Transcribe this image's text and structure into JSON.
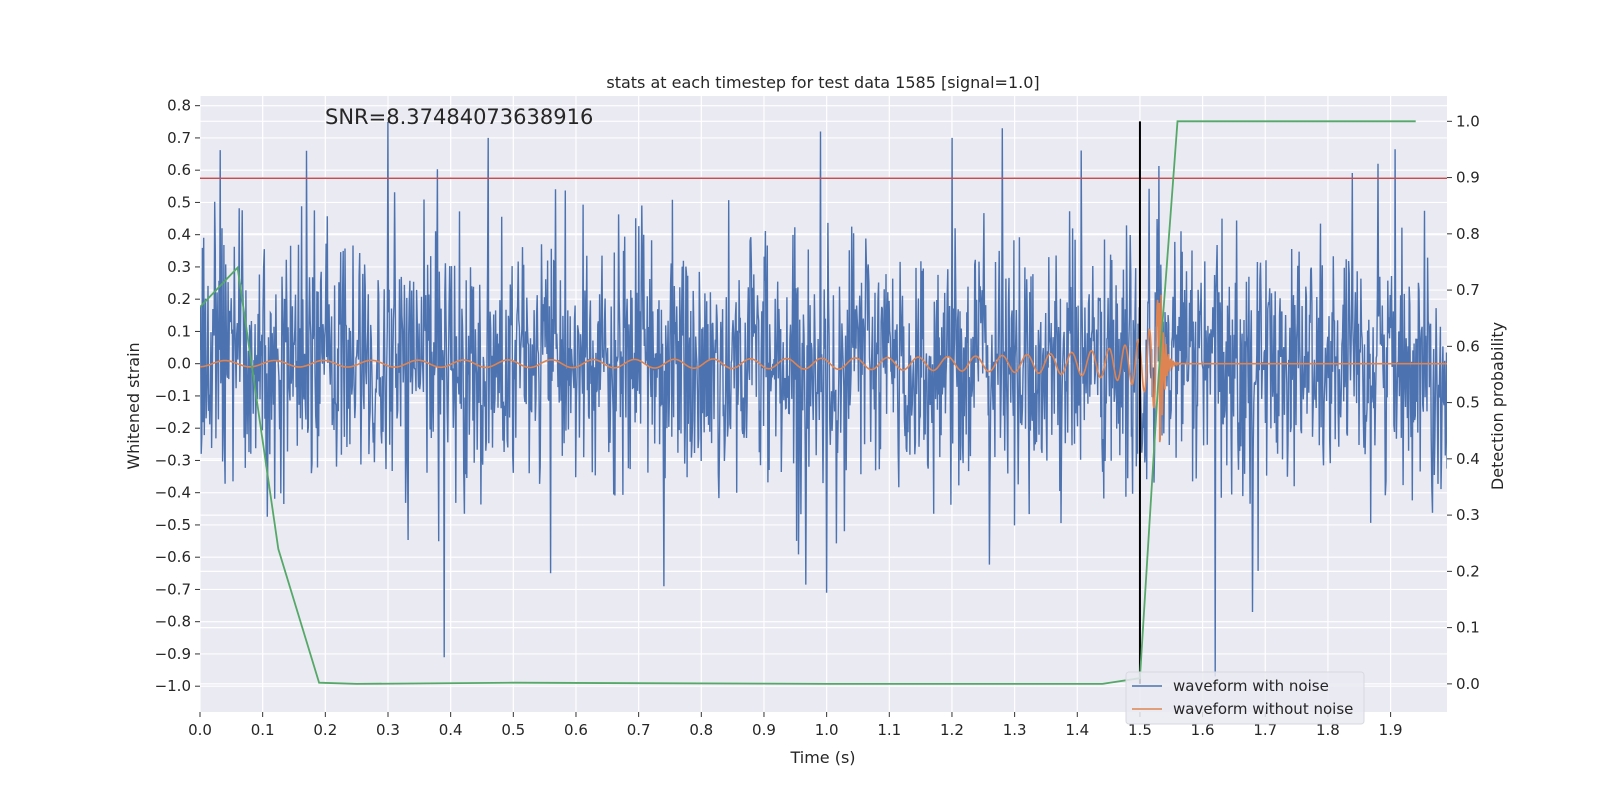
{
  "chart_data": {
    "type": "line",
    "title": "stats at each timestep for test data 1585 [signal=1.0]",
    "xlabel": "Time (s)",
    "ylabel": "Whitened strain",
    "y2label": "Detection probability",
    "annotation": "SNR=8.37484073638916",
    "xlim": [
      0.0,
      1.99
    ],
    "ylim": [
      -1.08,
      0.83
    ],
    "y2lim": [
      -0.05,
      1.045
    ],
    "xticks": [
      "0.0",
      "0.1",
      "0.2",
      "0.3",
      "0.4",
      "0.5",
      "0.6",
      "0.7",
      "0.8",
      "0.9",
      "1.0",
      "1.1",
      "1.2",
      "1.3",
      "1.4",
      "1.5",
      "1.6",
      "1.7",
      "1.8",
      "1.9"
    ],
    "yticks": [
      "0.8",
      "0.7",
      "0.6",
      "0.5",
      "0.4",
      "0.3",
      "0.2",
      "0.1",
      "0.0",
      "−0.1",
      "−0.2",
      "−0.3",
      "−0.4",
      "−0.5",
      "−0.6",
      "−0.7",
      "−0.8",
      "−0.9",
      "−1.0"
    ],
    "y2ticks": [
      "1.0",
      "0.9",
      "0.8",
      "0.7",
      "0.6",
      "0.5",
      "0.4",
      "0.3",
      "0.2",
      "0.1",
      "0.0"
    ],
    "grid": true,
    "legend_position": "lower-right",
    "threshold": {
      "y": 0.575,
      "color": "#c44e52"
    },
    "event_time": {
      "x": 1.5,
      "ymin": -1.0,
      "ymax": 0.75,
      "color": "#000000"
    },
    "series": [
      {
        "name": "waveform with noise",
        "color": "#4c72b0",
        "axis": "left",
        "t_start": 0.0,
        "t_end": 1.99,
        "sample_rate": 1024,
        "noise_sigma": 0.19,
        "spikes": [
          [
            0.17,
            0.66
          ],
          [
            0.3,
            0.75
          ],
          [
            0.39,
            -0.91
          ],
          [
            0.46,
            0.7
          ],
          [
            0.56,
            -0.65
          ],
          [
            0.74,
            -0.69
          ],
          [
            0.99,
            0.72
          ],
          [
            1.0,
            -0.71
          ],
          [
            1.2,
            0.7
          ],
          [
            1.28,
            0.73
          ],
          [
            1.62,
            -0.97
          ],
          [
            1.68,
            -0.77
          ],
          [
            1.88,
            0.62
          ]
        ]
      },
      {
        "name": "waveform without noise",
        "color": "#dd8452",
        "axis": "left",
        "merger_time": 1.53,
        "end_time": 1.99
      },
      {
        "name": "",
        "color": "#55a868",
        "axis": "right",
        "x": [
          0.0,
          0.06,
          0.125,
          0.19,
          0.25,
          0.5,
          1.0,
          1.44,
          1.5,
          1.53,
          1.56,
          1.6,
          1.94
        ],
        "y": [
          0.67,
          0.74,
          0.24,
          0.002,
          0.0,
          0.002,
          0.0,
          0.0,
          0.01,
          0.55,
          1.0,
          1.0,
          1.0
        ]
      }
    ],
    "legend": [
      "waveform with noise",
      "waveform without noise"
    ]
  }
}
